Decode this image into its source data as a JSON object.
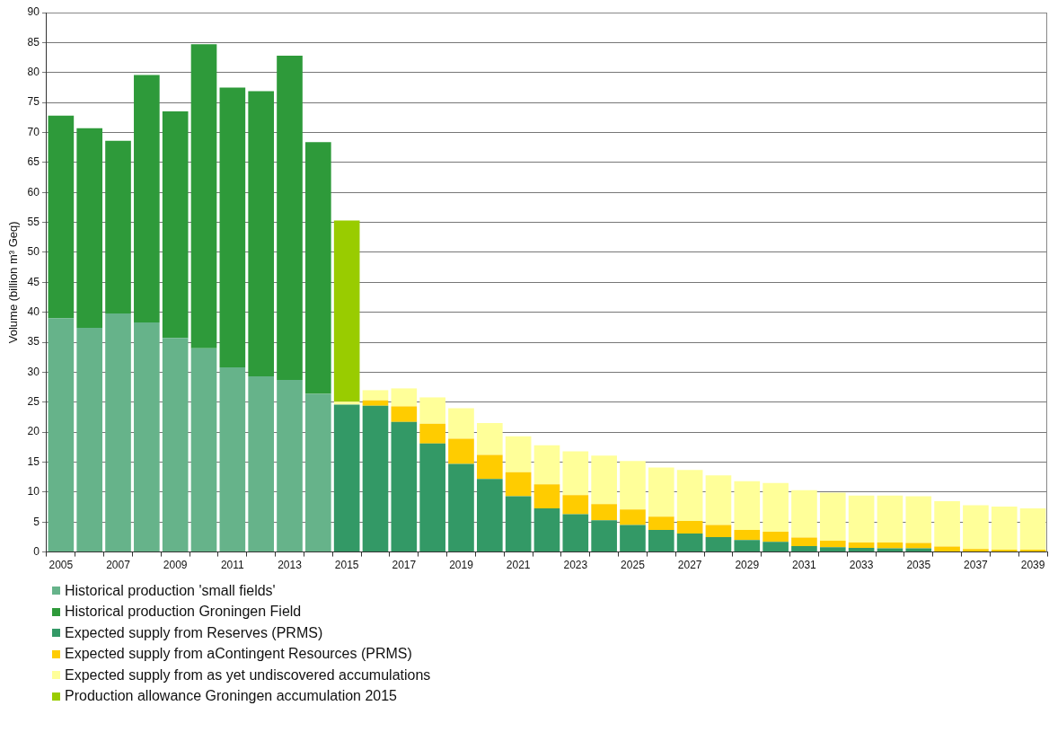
{
  "chart_data": {
    "type": "bar",
    "stacked": true,
    "ylabel": "Volume (billion m³ Geq)",
    "categories": [
      "2005",
      null,
      "2007",
      null,
      "2009",
      null,
      "2011",
      null,
      "2013",
      null,
      "2015",
      null,
      "2017",
      null,
      "2019",
      null,
      "2021",
      null,
      "2023",
      null,
      "2025",
      null,
      "2027",
      null,
      "2029",
      null,
      "2031",
      null,
      "2033",
      null,
      "2035",
      null,
      "2037",
      null,
      "2039"
    ],
    "series": [
      {
        "name": "Historical production 'small fields'",
        "color": "#66b38a",
        "values": [
          39.0,
          37.4,
          39.8,
          38.3,
          35.7,
          34.0,
          30.8,
          29.3,
          28.7,
          26.4,
          null,
          null,
          null,
          null,
          null,
          null,
          null,
          null,
          null,
          null,
          null,
          null,
          null,
          null,
          null,
          null,
          null,
          null,
          null,
          null,
          null,
          null,
          null,
          null,
          null
        ]
      },
      {
        "name": "Historical production Groningen Field",
        "color": "#2e9a3a",
        "values": [
          33.8,
          33.3,
          28.8,
          41.3,
          37.8,
          50.7,
          46.7,
          47.6,
          54.1,
          42.0,
          null,
          null,
          null,
          null,
          null,
          null,
          null,
          null,
          null,
          null,
          null,
          null,
          null,
          null,
          null,
          null,
          null,
          null,
          null,
          null,
          null,
          null,
          null,
          null,
          null
        ]
      },
      {
        "name": "Expected supply from Reserves (PRMS)",
        "color": "#339966",
        "values": [
          null,
          null,
          null,
          null,
          null,
          null,
          null,
          null,
          null,
          null,
          24.6,
          24.4,
          21.7,
          18.1,
          14.7,
          12.2,
          9.3,
          7.3,
          6.3,
          5.3,
          4.5,
          3.7,
          3.1,
          2.5,
          2.0,
          1.7,
          1.0,
          0.8,
          0.7,
          0.6,
          0.6,
          null,
          null,
          null,
          null
        ]
      },
      {
        "name": "Expected supply from aContingent Resources (PRMS)",
        "color": "#ffcc00",
        "values": [
          null,
          null,
          null,
          null,
          null,
          null,
          null,
          null,
          null,
          null,
          null,
          0.9,
          2.6,
          3.3,
          4.2,
          4.0,
          4.0,
          4.0,
          3.2,
          2.7,
          2.6,
          2.2,
          2.1,
          2.0,
          1.7,
          1.7,
          1.4,
          1.1,
          0.9,
          1.0,
          0.9,
          0.9,
          0.5,
          0.4,
          0.4
        ]
      },
      {
        "name": "Expected supply from as yet undiscovered accumulations",
        "color": "#ffff99",
        "values": [
          null,
          null,
          null,
          null,
          null,
          null,
          null,
          null,
          null,
          null,
          0.5,
          1.7,
          3.0,
          4.4,
          5.1,
          5.3,
          6.0,
          6.5,
          7.3,
          8.1,
          8.1,
          8.2,
          8.5,
          8.3,
          8.1,
          8.1,
          7.9,
          8.0,
          7.8,
          7.8,
          7.8,
          7.6,
          7.3,
          7.2,
          6.9
        ]
      },
      {
        "name": "Production allowance Groningen accumulation 2015",
        "color": "#99cc00",
        "values": [
          null,
          null,
          null,
          null,
          null,
          null,
          null,
          null,
          null,
          null,
          30.2,
          null,
          null,
          null,
          null,
          null,
          null,
          null,
          null,
          null,
          null,
          null,
          null,
          null,
          null,
          null,
          null,
          null,
          null,
          null,
          null,
          null,
          null,
          null,
          null
        ]
      }
    ],
    "ylim": [
      0,
      90
    ],
    "yticks": [
      0,
      5,
      10,
      15,
      20,
      25,
      30,
      35,
      40,
      45,
      50,
      55,
      60,
      65,
      70,
      75,
      80,
      85,
      90
    ],
    "grid": "y",
    "legend": "bottom"
  }
}
